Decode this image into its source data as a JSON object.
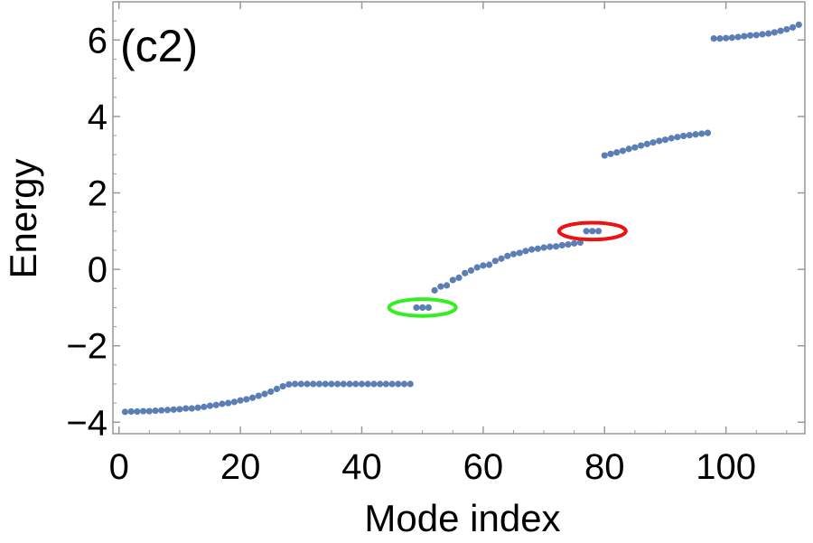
{
  "chart_data": {
    "type": "scatter",
    "panel_label": "(c2)",
    "xlabel": "Mode index",
    "ylabel": "Energy",
    "xlim": [
      -1,
      113
    ],
    "ylim": [
      -4.3,
      7.0
    ],
    "xticks": [
      {
        "value": 0,
        "label": "0"
      },
      {
        "value": 20,
        "label": "20"
      },
      {
        "value": 40,
        "label": "40"
      },
      {
        "value": 60,
        "label": "60"
      },
      {
        "value": 80,
        "label": "80"
      },
      {
        "value": 100,
        "label": "100"
      }
    ],
    "yticks": [
      {
        "value": -4,
        "label": "−4"
      },
      {
        "value": -2,
        "label": "−2"
      },
      {
        "value": 0,
        "label": "0"
      },
      {
        "value": 2,
        "label": "2"
      },
      {
        "value": 4,
        "label": "4"
      },
      {
        "value": 6,
        "label": "6"
      }
    ],
    "grid": false,
    "series": [
      {
        "color": "#5b7fb5",
        "x": [
          1,
          2,
          3,
          4,
          5,
          6,
          7,
          8,
          9,
          10,
          11,
          12,
          13,
          14,
          15,
          16,
          17,
          18,
          19,
          20,
          21,
          22,
          23,
          24,
          25,
          26,
          27,
          28,
          29,
          30,
          31,
          32,
          33,
          34,
          35,
          36,
          37,
          38,
          39,
          40,
          41,
          42,
          43,
          44,
          45,
          46,
          47,
          48,
          49,
          50,
          51,
          52,
          53,
          54,
          55,
          56,
          57,
          58,
          59,
          60,
          61,
          62,
          63,
          64,
          65,
          66,
          67,
          68,
          69,
          70,
          71,
          72,
          73,
          74,
          75,
          76,
          77,
          78,
          79,
          80,
          81,
          82,
          83,
          84,
          85,
          86,
          87,
          88,
          89,
          90,
          91,
          92,
          93,
          94,
          95,
          96,
          97,
          98,
          99,
          100,
          101,
          102,
          103,
          104,
          105,
          106,
          107,
          108,
          109,
          110,
          111,
          112
        ],
        "y": [
          -3.73,
          -3.72,
          -3.72,
          -3.71,
          -3.71,
          -3.7,
          -3.69,
          -3.68,
          -3.67,
          -3.66,
          -3.64,
          -3.64,
          -3.62,
          -3.6,
          -3.57,
          -3.55,
          -3.52,
          -3.5,
          -3.47,
          -3.43,
          -3.4,
          -3.36,
          -3.31,
          -3.26,
          -3.2,
          -3.13,
          -3.06,
          -3.01,
          -3.0,
          -3.0,
          -3.0,
          -3.0,
          -3.0,
          -3.0,
          -3.0,
          -3.0,
          -3.0,
          -3.0,
          -3.0,
          -3.0,
          -3.0,
          -3.0,
          -3.0,
          -3.0,
          -3.0,
          -3.0,
          -3.0,
          -3.0,
          -1.0,
          -1.0,
          -1.0,
          -0.55,
          -0.45,
          -0.42,
          -0.28,
          -0.22,
          -0.1,
          -0.03,
          0.05,
          0.1,
          0.12,
          0.22,
          0.28,
          0.35,
          0.4,
          0.43,
          0.48,
          0.52,
          0.54,
          0.57,
          0.59,
          0.6,
          0.63,
          0.65,
          0.68,
          0.7,
          1.0,
          1.0,
          1.0,
          2.98,
          3.02,
          3.06,
          3.1,
          3.15,
          3.19,
          3.24,
          3.28,
          3.32,
          3.36,
          3.39,
          3.43,
          3.46,
          3.49,
          3.51,
          3.53,
          3.55,
          3.57,
          6.04,
          6.04,
          6.05,
          6.06,
          6.08,
          6.1,
          6.12,
          6.13,
          6.15,
          6.17,
          6.2,
          6.24,
          6.28,
          6.33,
          6.4
        ]
      }
    ],
    "highlights": [
      {
        "cx": 50,
        "cy": -1.0,
        "rx": 5.5,
        "ry": 0.22,
        "color": "#33ee22"
      },
      {
        "cx": 78,
        "cy": 1.0,
        "rx": 5.5,
        "ry": 0.22,
        "color": "#ee1111"
      }
    ]
  }
}
